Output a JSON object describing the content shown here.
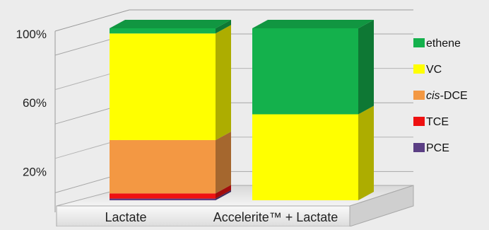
{
  "chart_data": {
    "type": "bar",
    "stacked": true,
    "style": "3d-column",
    "categories": [
      "Lactate",
      "Accelerite™ + Lactate"
    ],
    "y_unit": "%",
    "ylim": [
      0,
      100
    ],
    "yticks": [
      {
        "value": 20,
        "label": "20%"
      },
      {
        "value": 60,
        "label": "60%"
      },
      {
        "value": 100,
        "label": "100%"
      }
    ],
    "grid": true,
    "legend_position": "right",
    "series": [
      {
        "name": "PCE",
        "italic_prefix": "",
        "color": "#5b3f84",
        "values": [
          1,
          0
        ]
      },
      {
        "name": "TCE",
        "italic_prefix": "",
        "color": "#ee1111",
        "values": [
          3,
          0
        ]
      },
      {
        "name": "-DCE",
        "italic_prefix": "cis",
        "color": "#f39843",
        "values": [
          31,
          0
        ]
      },
      {
        "name": "VC",
        "italic_prefix": "",
        "color": "#ffff00",
        "values": [
          62,
          50
        ]
      },
      {
        "name": "ethene",
        "italic_prefix": "",
        "color": "#14b14c",
        "values": [
          3,
          50
        ]
      }
    ]
  }
}
